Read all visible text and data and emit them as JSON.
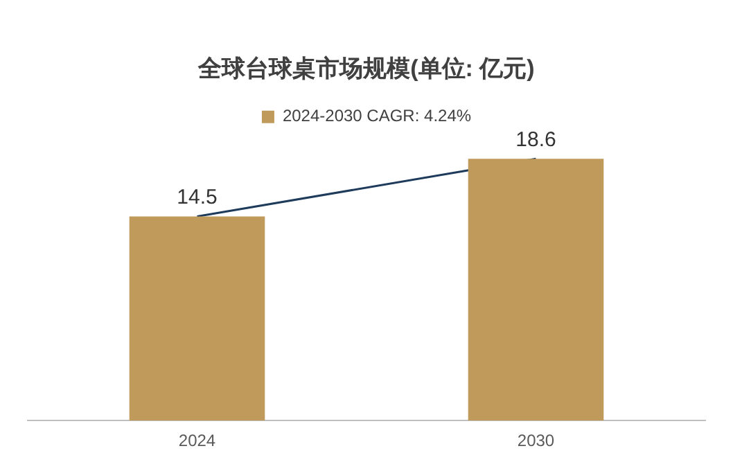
{
  "chart_data": {
    "type": "bar",
    "title": "全球台球桌市场规模(单位: 亿元)",
    "categories": [
      "2024",
      "2030"
    ],
    "series": [
      {
        "name": "2024-2030 CAGR: 4.24%",
        "color": "#bf9a5a",
        "values": [
          14.5,
          18.6
        ],
        "value_labels": [
          "14.5",
          "18.6"
        ]
      },
      {
        "type": "line",
        "color": "#1f3b5c",
        "values": [
          14.5,
          18.6
        ]
      }
    ],
    "grid": false,
    "legend": "top",
    "tick_labels": "x",
    "marker": "none"
  }
}
